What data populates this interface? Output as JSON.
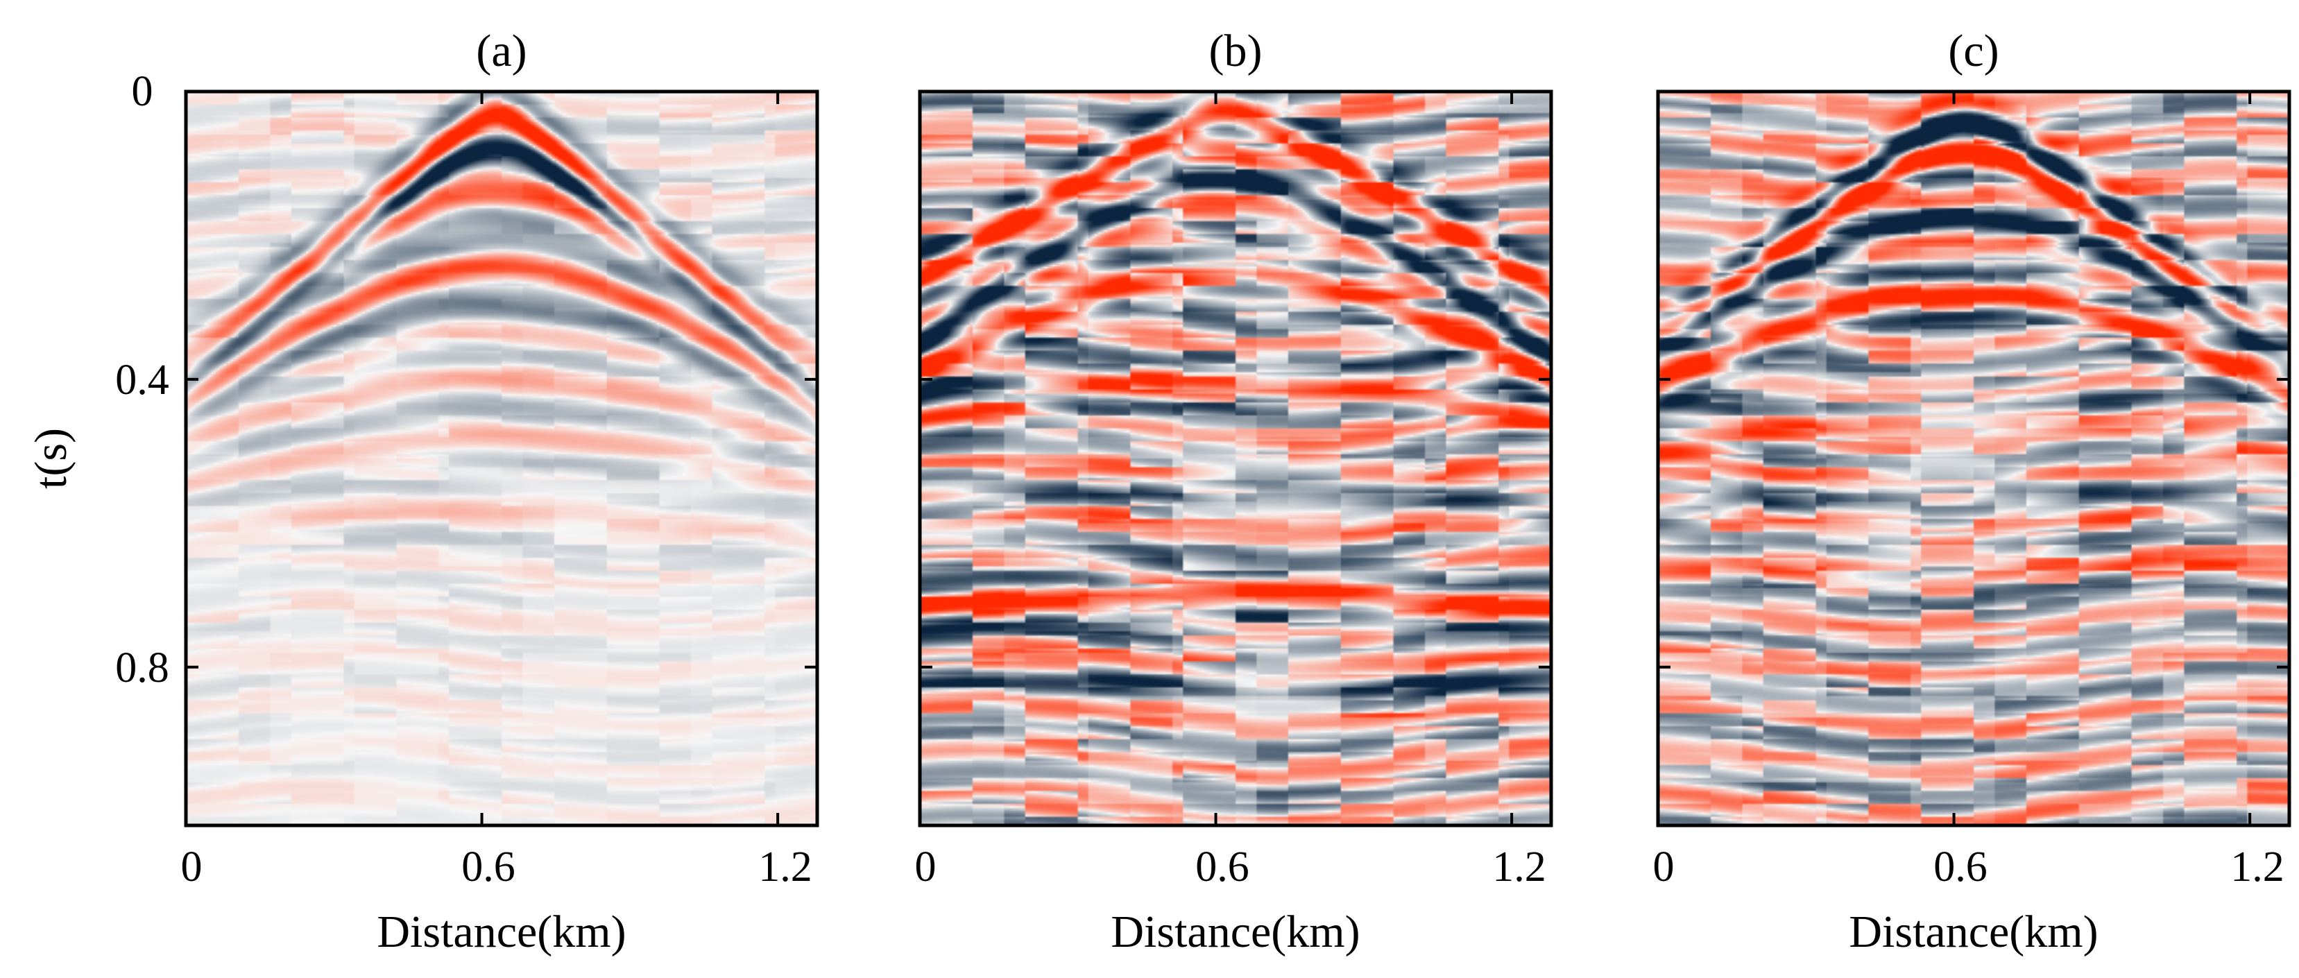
{
  "chart_data": [
    {
      "type": "heatmap",
      "panel": "a",
      "title": "(a)",
      "xlabel": "Distance(km)",
      "ylabel": "t(s)",
      "xlim": [
        0,
        1.28
      ],
      "ylim": [
        0,
        1.02
      ],
      "xticks": [
        0,
        0.6,
        1.2
      ],
      "xtick_labels": [
        "0",
        "0.6",
        "1.2"
      ],
      "yticks": [
        0,
        0.4,
        0.8
      ],
      "ytick_labels": [
        "0",
        "0.4",
        "0.8"
      ],
      "colormap": [
        "#0b2540",
        "#f7f7f7",
        "#ff2a00"
      ],
      "source_x_km": 0.63,
      "events": [
        {
          "t0": 0.03,
          "v": 1.6,
          "amp": 1.0
        },
        {
          "t0": 0.08,
          "v": 1.6,
          "amp": -0.9
        },
        {
          "t0": 0.14,
          "v": 1.9,
          "amp": 0.6
        },
        {
          "t0": 0.24,
          "v": 1.75,
          "amp": 0.9
        },
        {
          "t0": 0.3,
          "v": 2.0,
          "amp": -0.4
        },
        {
          "t0": 0.4,
          "v": 2.2,
          "amp": 0.35
        },
        {
          "t0": 0.48,
          "v": 2.4,
          "amp": 0.3
        },
        {
          "t0": 0.58,
          "v": 2.6,
          "amp": 0.25
        }
      ]
    },
    {
      "type": "heatmap",
      "panel": "b",
      "title": "(b)",
      "xlabel": "Distance(km)",
      "ylabel": "",
      "xlim": [
        0,
        1.28
      ],
      "ylim": [
        0,
        1.02
      ],
      "xticks": [
        0,
        0.6,
        1.2
      ],
      "xtick_labels": [
        "0",
        "0.6",
        "1.2"
      ],
      "yticks": [
        0,
        0.4,
        0.8
      ],
      "ytick_labels": [],
      "colormap": [
        "#0b2540",
        "#f7f7f7",
        "#ff2a00"
      ],
      "events": [
        {
          "t0": 0.03,
          "v": 2.4,
          "amp": 1.0
        },
        {
          "t0": 0.12,
          "v": 1.9,
          "amp": -0.9
        },
        {
          "t0": 0.25,
          "v": 2.1,
          "amp": 0.8
        },
        {
          "t0": 0.4,
          "v": 2.8,
          "amp": 0.5
        },
        {
          "t0": 0.55,
          "v": 3.2,
          "amp": -0.5
        },
        {
          "t0": 0.7,
          "v": 4.0,
          "amp": 1.0
        },
        {
          "t0": 0.82,
          "v": 4.5,
          "amp": -0.5
        }
      ]
    },
    {
      "type": "heatmap",
      "panel": "c",
      "title": "(c)",
      "xlabel": "Distance(km)",
      "ylabel": "",
      "xlim": [
        0,
        1.28
      ],
      "ylim": [
        0,
        1.02
      ],
      "xticks": [
        0,
        0.6,
        1.2
      ],
      "xtick_labels": [
        "0",
        "0.6",
        "1.2"
      ],
      "yticks": [
        0,
        0.4,
        0.8
      ],
      "ytick_labels": [],
      "colormap": [
        "#0b2540",
        "#f7f7f7",
        "#ff2a00"
      ],
      "events": [
        {
          "t0": 0.04,
          "v": 1.9,
          "amp": -1.0
        },
        {
          "t0": 0.08,
          "v": 1.9,
          "amp": 0.9
        },
        {
          "t0": 0.17,
          "v": 2.0,
          "amp": -0.8
        },
        {
          "t0": 0.28,
          "v": 2.1,
          "amp": 0.9
        },
        {
          "t0": 0.45,
          "v": 2.8,
          "amp": 0.4
        },
        {
          "t0": 0.55,
          "v": 3.0,
          "amp": -0.5
        },
        {
          "t0": 0.65,
          "v": 3.5,
          "amp": 0.4
        }
      ]
    }
  ]
}
